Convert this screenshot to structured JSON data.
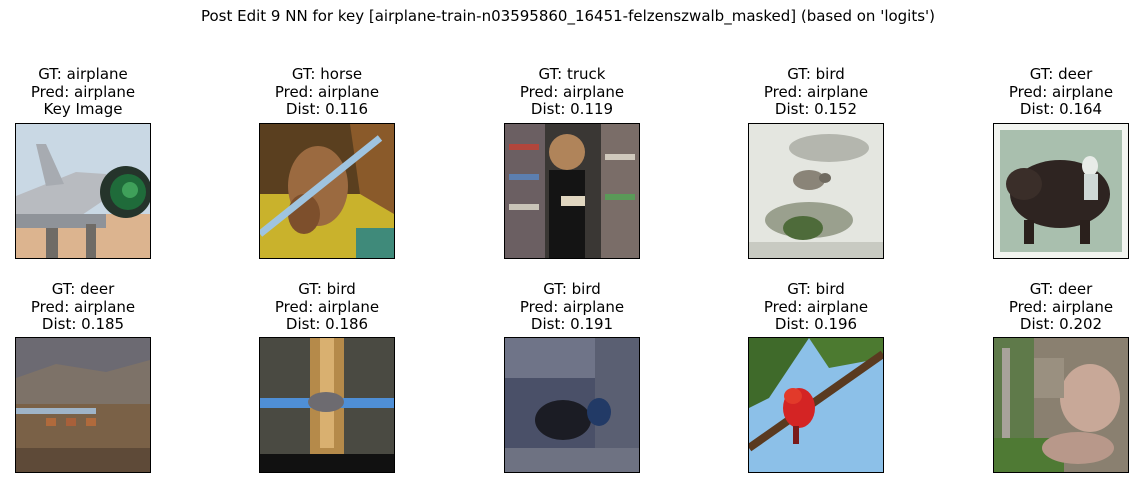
{
  "figure": {
    "title": "Post Edit 9 NN for key [airplane-train-n03595860_16451-felzenszwalb_masked] (based on 'logits')"
  },
  "panels": [
    {
      "gt": "GT: airplane",
      "pred": "Pred: airplane",
      "extra": "Key Image",
      "image": "airplane-jet-icon"
    },
    {
      "gt": "GT: horse",
      "pred": "Pred: airplane",
      "extra": "Dist: 0.116",
      "image": "horse-icon"
    },
    {
      "gt": "GT: truck",
      "pred": "Pred: airplane",
      "extra": "Dist: 0.119",
      "image": "child-bookshelf-icon"
    },
    {
      "gt": "GT: bird",
      "pred": "Pred: airplane",
      "extra": "Dist: 0.152",
      "image": "bird-branch-icon"
    },
    {
      "gt": "GT: deer",
      "pred": "Pred: airplane",
      "extra": "Dist: 0.164",
      "image": "dark-animal-icon"
    },
    {
      "gt": "GT: deer",
      "pred": "Pred: airplane",
      "extra": "Dist: 0.185",
      "image": "field-landscape-icon"
    },
    {
      "gt": "GT: bird",
      "pred": "Pred: airplane",
      "extra": "Dist: 0.186",
      "image": "blurred-bird-icon"
    },
    {
      "gt": "GT: bird",
      "pred": "Pred: airplane",
      "extra": "Dist: 0.191",
      "image": "dark-bird-icon"
    },
    {
      "gt": "GT: bird",
      "pred": "Pred: airplane",
      "extra": "Dist: 0.196",
      "image": "red-bird-icon"
    },
    {
      "gt": "GT: deer",
      "pred": "Pred: airplane",
      "extra": "Dist: 0.202",
      "image": "deer-grass-icon"
    }
  ]
}
